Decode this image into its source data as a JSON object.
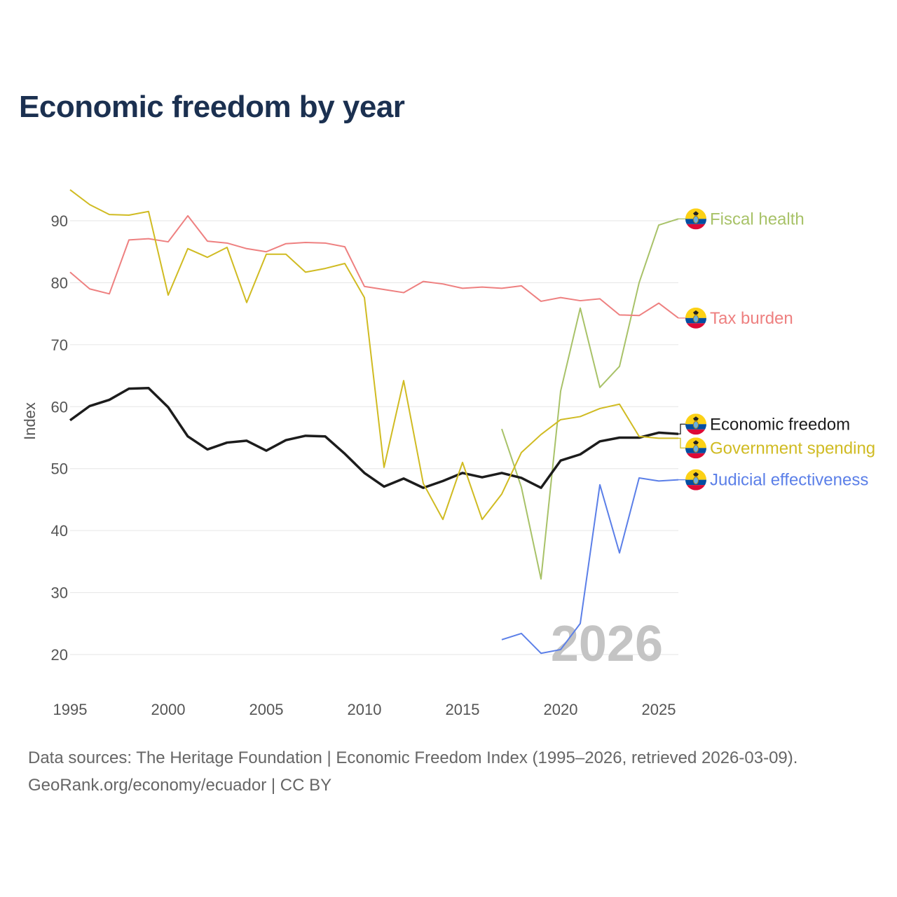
{
  "title": "Economic freedom by year",
  "footer": {
    "line1": "Data sources: The Heritage Foundation | Economic Freedom Index (1995–2026, retrieved 2026-03-09).",
    "line2": "GeoRank.org/economy/ecuador | CC BY"
  },
  "chart_data": {
    "type": "line",
    "title": "Economic freedom by year",
    "xlabel": "",
    "ylabel": "Index",
    "xlim": [
      1995,
      2026
    ],
    "ylim": [
      15,
      97
    ],
    "x_ticks": [
      1995,
      2000,
      2005,
      2010,
      2015,
      2020,
      2025
    ],
    "y_ticks": [
      20,
      30,
      40,
      50,
      60,
      70,
      80,
      90
    ],
    "grid": "horizontal",
    "watermark_year": "2026",
    "legend_placement": "right, inline at line ends",
    "flag_icon": "ecuador-flag-icon",
    "series": [
      {
        "name": "Fiscal health",
        "color": "#a8c268",
        "width": 2,
        "start": 2017,
        "values": [
          56.4,
          47.0,
          32.2,
          62.5,
          75.9,
          63.1,
          66.5,
          80.0,
          89.3,
          90.3
        ]
      },
      {
        "name": "Tax burden",
        "color": "#ee8080",
        "width": 2,
        "start": 1995,
        "values": [
          81.7,
          79.0,
          78.2,
          86.9,
          87.1,
          86.6,
          90.8,
          86.7,
          86.4,
          85.5,
          85.0,
          86.3,
          86.5,
          86.4,
          85.8,
          79.4,
          78.9,
          78.4,
          80.2,
          79.8,
          79.1,
          79.3,
          79.1,
          79.5,
          77.0,
          77.6,
          77.1,
          77.4,
          74.8,
          74.7,
          76.7,
          74.3
        ]
      },
      {
        "name": "Economic freedom",
        "color": "#1c1c1c",
        "width": 3.5,
        "start": 1995,
        "values": [
          57.8,
          60.1,
          61.1,
          62.9,
          63.0,
          59.9,
          55.2,
          53.1,
          54.2,
          54.5,
          52.9,
          54.6,
          55.3,
          55.2,
          52.4,
          49.3,
          47.1,
          48.4,
          46.9,
          48.0,
          49.3,
          48.6,
          49.3,
          48.5,
          46.9,
          51.3,
          52.3,
          54.4,
          55.0,
          55.0,
          55.8,
          55.6
        ]
      },
      {
        "name": "Government spending",
        "color": "#d0bb22",
        "width": 2,
        "start": 1995,
        "values": [
          95.0,
          92.6,
          91.0,
          90.9,
          91.5,
          78.0,
          85.5,
          84.1,
          85.7,
          76.8,
          84.6,
          84.6,
          81.7,
          82.3,
          83.1,
          77.6,
          50.2,
          64.2,
          47.6,
          41.8,
          51.0,
          41.8,
          45.9,
          52.6,
          55.5,
          57.9,
          58.4,
          59.7,
          60.4,
          55.2,
          54.9,
          54.9
        ]
      },
      {
        "name": "Judicial effectiveness",
        "color": "#5b7fe8",
        "width": 2,
        "start": 2017,
        "values": [
          22.4,
          23.4,
          20.2,
          20.8,
          25.0,
          47.4,
          36.4,
          48.5,
          48.0,
          48.2
        ]
      }
    ]
  }
}
